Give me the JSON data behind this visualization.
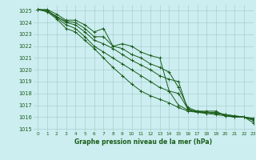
{
  "title": "Graphe pression niveau de la mer (hPa)",
  "background_color": "#cceef0",
  "grid_color": "#aacdd0",
  "line_color": "#1a5c1a",
  "xlim": [
    -0.5,
    23
  ],
  "ylim": [
    1014.8,
    1025.5
  ],
  "xticks": [
    0,
    1,
    2,
    3,
    4,
    5,
    6,
    7,
    8,
    9,
    10,
    11,
    12,
    13,
    14,
    15,
    16,
    17,
    18,
    19,
    20,
    21,
    22,
    23
  ],
  "yticks": [
    1015,
    1016,
    1017,
    1018,
    1019,
    1020,
    1021,
    1022,
    1023,
    1024,
    1025
  ],
  "series": [
    [
      1025.1,
      1025.1,
      1024.7,
      1024.2,
      1024.2,
      1023.8,
      1023.2,
      1023.5,
      1022.0,
      1022.2,
      1022.0,
      1021.5,
      1021.2,
      1021.0,
      1018.2,
      1017.0,
      1016.6,
      1016.5,
      1016.5,
      1016.5,
      1016.1,
      1016.0,
      1016.0,
      1015.5
    ],
    [
      1025.1,
      1025.0,
      1024.5,
      1024.1,
      1024.0,
      1023.5,
      1022.8,
      1022.8,
      1022.0,
      1021.8,
      1021.3,
      1021.0,
      1020.5,
      1020.2,
      1019.8,
      1018.5,
      1016.8,
      1016.5,
      1016.4,
      1016.4,
      1016.2,
      1016.1,
      1016.0,
      1015.7
    ],
    [
      1025.1,
      1025.0,
      1024.5,
      1024.0,
      1023.8,
      1023.2,
      1022.5,
      1022.2,
      1021.8,
      1021.3,
      1020.8,
      1020.4,
      1020.0,
      1019.5,
      1019.2,
      1019.0,
      1016.6,
      1016.4,
      1016.4,
      1016.3,
      1016.2,
      1016.1,
      1016.0,
      1015.8
    ],
    [
      1025.1,
      1025.0,
      1024.4,
      1023.8,
      1023.5,
      1022.8,
      1022.0,
      1021.5,
      1021.0,
      1020.5,
      1020.0,
      1019.5,
      1019.0,
      1018.5,
      1018.2,
      1018.0,
      1016.7,
      1016.4,
      1016.4,
      1016.3,
      1016.2,
      1016.0,
      1016.0,
      1015.8
    ],
    [
      1025.1,
      1024.9,
      1024.3,
      1023.5,
      1023.2,
      1022.5,
      1021.8,
      1021.0,
      1020.2,
      1019.5,
      1018.8,
      1018.2,
      1017.8,
      1017.5,
      1017.2,
      1016.8,
      1016.5,
      1016.4,
      1016.3,
      1016.2,
      1016.1,
      1016.0,
      1016.0,
      1015.9
    ]
  ]
}
